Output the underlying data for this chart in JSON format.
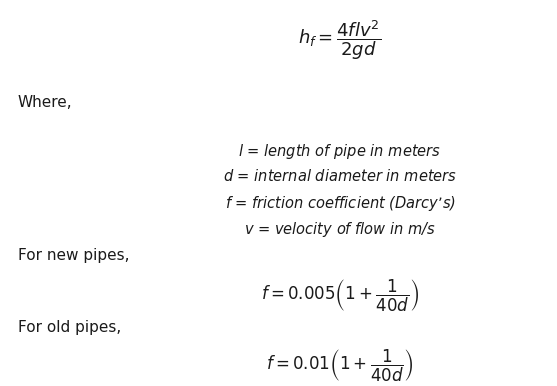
{
  "background_color": "#ffffff",
  "fig_width": 5.57,
  "fig_height": 3.86,
  "dpi": 100,
  "main_formula": "$h_f = \\dfrac{4flv^2}{2gd}$",
  "where_text": "Where,",
  "definitions": [
    "$l$ = length of pipe in meters",
    "$d$ = internal diameter in meters",
    "$f$ = friction coefficient (Darcy’s)",
    "$v$ = velocity of flow in m/s"
  ],
  "new_pipes_label": "For new pipes,",
  "new_pipes_formula": "$f = 0.005\\left(1 + \\dfrac{1}{40d}\\right)$",
  "old_pipes_label": "For old pipes,",
  "old_pipes_formula": "$f = 0.01\\left(1 + \\dfrac{1}{40d}\\right)$",
  "text_color": "#1a1a1a",
  "main_formula_fontsize": 13,
  "label_fontsize": 11,
  "formula_fontsize": 12,
  "def_fontsize": 10.5
}
